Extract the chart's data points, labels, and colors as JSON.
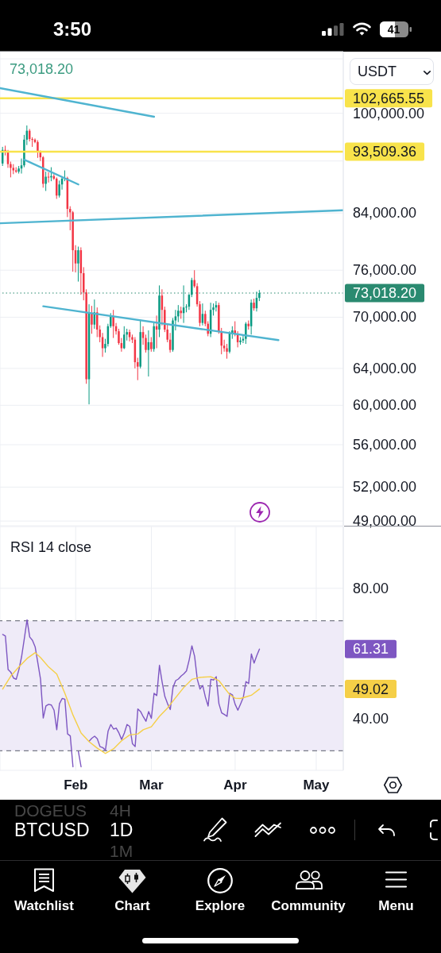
{
  "chart_data": [
    {
      "type": "candlestick",
      "x": [
        "--01-05",
        "--01-06",
        "--01-07",
        "--01-08",
        "--01-09",
        "--01-10",
        "--01-11",
        "--01-12",
        "--01-13",
        "--01-14",
        "--01-15",
        "--01-16",
        "--01-17",
        "--01-18",
        "--01-19",
        "--01-20",
        "--01-21",
        "--01-22",
        "--01-23",
        "--01-24",
        "--01-25",
        "--01-26",
        "--01-27",
        "--01-28",
        "--01-29",
        "--01-30",
        "--01-31",
        "--02-01",
        "--02-02",
        "--02-03",
        "--02-04",
        "--02-05",
        "--02-06",
        "--02-07",
        "--02-08",
        "--02-09",
        "--02-10",
        "--02-11",
        "--02-12",
        "--02-13",
        "--02-14",
        "--02-15",
        "--02-16",
        "--02-17",
        "--02-18",
        "--02-19",
        "--02-20",
        "--02-21",
        "--02-22",
        "--02-23",
        "--02-24",
        "--02-25",
        "--02-26",
        "--02-27",
        "--02-28",
        "--03-01",
        "--03-02",
        "--03-03",
        "--03-04",
        "--03-05",
        "--03-06",
        "--03-07",
        "--03-08",
        "--03-09",
        "--03-10",
        "--03-11",
        "--03-12",
        "--03-13",
        "--03-14",
        "--03-15",
        "--03-16",
        "--03-17",
        "--03-18",
        "--03-19",
        "--03-20",
        "--03-21",
        "--03-22",
        "--03-23",
        "--03-24",
        "--03-25",
        "--03-26",
        "--03-27",
        "--03-28",
        "--03-29",
        "--03-30",
        "--03-31",
        "--04-01",
        "--04-02",
        "--04-03",
        "--04-04",
        "--04-05",
        "--04-06",
        "--04-07",
        "--04-08",
        "--04-09",
        "--04-10"
      ],
      "ohlc": [
        [
          91600,
          94300,
          91200,
          93800
        ],
        [
          93800,
          94500,
          92900,
          93600
        ],
        [
          93600,
          93800,
          90900,
          91500
        ],
        [
          91500,
          91900,
          89400,
          90900
        ],
        [
          90900,
          91500,
          89900,
          90500
        ],
        [
          90500,
          91000,
          90100,
          90300
        ],
        [
          90300,
          91200,
          90000,
          90800
        ],
        [
          90800,
          92400,
          90000,
          91300
        ],
        [
          91300,
          96300,
          91000,
          95500
        ],
        [
          95500,
          97900,
          94600,
          97000
        ],
        [
          97000,
          97300,
          95200,
          95600
        ],
        [
          95600,
          95900,
          94300,
          95500
        ],
        [
          95500,
          95700,
          94900,
          95100
        ],
        [
          95100,
          95400,
          92500,
          93600
        ],
        [
          93600,
          93700,
          92000,
          92600
        ],
        [
          92600,
          92800,
          87800,
          88400
        ],
        [
          88400,
          90300,
          87300,
          89500
        ],
        [
          89500,
          90200,
          88600,
          89400
        ],
        [
          89400,
          91000,
          88800,
          89600
        ],
        [
          89600,
          89900,
          89000,
          89200
        ],
        [
          89200,
          89400,
          86100,
          86600
        ],
        [
          86600,
          88900,
          86300,
          88300
        ],
        [
          88300,
          89500,
          87500,
          89200
        ],
        [
          89200,
          90500,
          88800,
          89300
        ],
        [
          89300,
          89500,
          83400,
          84600
        ],
        [
          84600,
          85000,
          81500,
          84100
        ],
        [
          84100,
          84300,
          75800,
          78700
        ],
        [
          78700,
          79400,
          75700,
          76900
        ],
        [
          76900,
          79200,
          74500,
          78700
        ],
        [
          78700,
          79100,
          72800,
          75600
        ],
        [
          75600,
          76400,
          72100,
          73100
        ],
        [
          73100,
          73500,
          62300,
          62800
        ],
        [
          62800,
          71600,
          60100,
          70500
        ],
        [
          70500,
          71400,
          68000,
          69100
        ],
        [
          69100,
          72200,
          68600,
          70600
        ],
        [
          70600,
          71200,
          67600,
          68500
        ],
        [
          68500,
          69000,
          67000,
          67600
        ],
        [
          67600,
          68100,
          65300,
          66300
        ],
        [
          66300,
          67400,
          65800,
          66800
        ],
        [
          66800,
          69200,
          66500,
          68900
        ],
        [
          68900,
          70500,
          68700,
          70100
        ],
        [
          70100,
          70900,
          67500,
          68900
        ],
        [
          68900,
          69300,
          67900,
          68300
        ],
        [
          68300,
          68600,
          66700,
          66900
        ],
        [
          66900,
          67500,
          65900,
          66300
        ],
        [
          66300,
          68900,
          66200,
          67900
        ],
        [
          67900,
          68600,
          67200,
          68200
        ],
        [
          68200,
          68500,
          67100,
          67600
        ],
        [
          67600,
          67900,
          66900,
          67300
        ],
        [
          67300,
          67600,
          64000,
          64700
        ],
        [
          64700,
          65200,
          62700,
          64200
        ],
        [
          64200,
          69700,
          64000,
          68200
        ],
        [
          68200,
          68900,
          66700,
          67500
        ],
        [
          67500,
          67900,
          65800,
          66100
        ],
        [
          66100,
          68400,
          63100,
          67000
        ],
        [
          67000,
          67600,
          65900,
          66200
        ],
        [
          66200,
          69400,
          65900,
          68900
        ],
        [
          68900,
          70200,
          66300,
          68500
        ],
        [
          68500,
          74000,
          67600,
          72700
        ],
        [
          72700,
          73500,
          69000,
          70900
        ],
        [
          70900,
          71300,
          68200,
          68500
        ],
        [
          68500,
          69100,
          67000,
          67300
        ],
        [
          67300,
          68100,
          65800,
          66100
        ],
        [
          66100,
          69900,
          65900,
          69600
        ],
        [
          69600,
          70900,
          68400,
          70100
        ],
        [
          70100,
          71500,
          69400,
          70800
        ],
        [
          70800,
          71300,
          69800,
          70500
        ],
        [
          70500,
          74000,
          69300,
          71200
        ],
        [
          71200,
          71600,
          70600,
          71300
        ],
        [
          71300,
          72900,
          70900,
          72800
        ],
        [
          72800,
          75000,
          72500,
          74700
        ],
        [
          74700,
          76000,
          73700,
          73900
        ],
        [
          73900,
          74300,
          71300,
          71600
        ],
        [
          71600,
          72000,
          68900,
          69300
        ],
        [
          69300,
          71700,
          69000,
          70400
        ],
        [
          70400,
          70800,
          68900,
          69200
        ],
        [
          69200,
          69500,
          67700,
          68000
        ],
        [
          68000,
          71800,
          67600,
          70900
        ],
        [
          70900,
          71700,
          70200,
          71200
        ],
        [
          71200,
          72000,
          70700,
          71500
        ],
        [
          71500,
          71800,
          68000,
          68300
        ],
        [
          68300,
          68700,
          65600,
          66600
        ],
        [
          66600,
          67300,
          65900,
          66300
        ],
        [
          66300,
          66800,
          65100,
          65900
        ],
        [
          65900,
          68300,
          65700,
          68100
        ],
        [
          68100,
          68900,
          67400,
          68400
        ],
        [
          68400,
          69500,
          67700,
          68000
        ],
        [
          68000,
          68300,
          66400,
          67000
        ],
        [
          67000,
          67600,
          66700,
          67200
        ],
        [
          67200,
          67800,
          66900,
          67400
        ],
        [
          67400,
          69400,
          66800,
          69200
        ],
        [
          69200,
          69600,
          68500,
          68900
        ],
        [
          68900,
          72200,
          67900,
          71800
        ],
        [
          71800,
          72300,
          70800,
          71100
        ],
        [
          71100,
          73200,
          70700,
          72400
        ],
        [
          72400,
          73400,
          72000,
          73018.2
        ]
      ],
      "colors": [
        "#089981",
        "#f23645",
        "#f23645",
        "#f23645",
        "#f23645",
        "#f23645",
        "#089981",
        "#089981",
        "#089981",
        "#089981",
        "#f23645",
        "#f23645",
        "#f23645",
        "#f23645",
        "#f23645",
        "#f23645",
        "#089981",
        "#f23645",
        "#089981",
        "#f23645",
        "#f23645",
        "#089981",
        "#089981",
        "#089981",
        "#f23645",
        "#f23645",
        "#f23645",
        "#f23645",
        "#089981",
        "#f23645",
        "#f23645",
        "#f23645",
        "#089981",
        "#f23645",
        "#089981",
        "#f23645",
        "#f23645",
        "#f23645",
        "#089981",
        "#089981",
        "#089981",
        "#f23645",
        "#f23645",
        "#f23645",
        "#f23645",
        "#089981",
        "#089981",
        "#f23645",
        "#f23645",
        "#f23645",
        "#f23645",
        "#089981",
        "#f23645",
        "#f23645",
        "#089981",
        "#f23645",
        "#089981",
        "#f23645",
        "#089981",
        "#f23645",
        "#f23645",
        "#f23645",
        "#f23645",
        "#089981",
        "#089981",
        "#089981",
        "#f23645",
        "#089981",
        "#089981",
        "#089981",
        "#089981",
        "#f23645",
        "#f23645",
        "#f23645",
        "#089981",
        "#f23645",
        "#f23645",
        "#089981",
        "#089981",
        "#089981",
        "#f23645",
        "#f23645",
        "#f23645",
        "#f23645",
        "#089981",
        "#089981",
        "#f23645",
        "#f23645",
        "#089981",
        "#089981",
        "#089981",
        "#f23645",
        "#089981",
        "#f23645",
        "#089981",
        "#089981"
      ],
      "series": [
        {
          "type": "line",
          "color": "#4fb4d0",
          "x": [
            "--01-04",
            "--03-02"
          ],
          "values": [
            104500,
            99400
          ]
        },
        {
          "type": "line",
          "color": "#4fb4d0",
          "x": [
            "--01-13",
            "--02-02"
          ],
          "values": [
            92200,
            88300
          ]
        },
        {
          "type": "line",
          "color": "#4fb4d0",
          "x": [
            "--01-04",
            "--05-11"
          ],
          "values": [
            82500,
            84400
          ]
        },
        {
          "type": "line",
          "color": "#4fb4d0",
          "x": [
            "--01-20",
            "--04-17"
          ],
          "values": [
            71350,
            67250
          ]
        }
      ],
      "xlim": [
        "--01-04",
        "--05-11"
      ],
      "xticks": [
        {
          "value": "--02-01",
          "label": "Feb"
        },
        {
          "value": "--03-01",
          "label": "Mar"
        },
        {
          "value": "--04-01",
          "label": "Apr"
        },
        {
          "value": "--05-01",
          "label": "May"
        }
      ],
      "ylim": [
        48600,
        111400
      ],
      "yticks": [
        {
          "value": 49000,
          "label": "49,000.00"
        },
        {
          "value": 52000,
          "label": "52,000.00"
        },
        {
          "value": 56000,
          "label": "56,000.00"
        },
        {
          "value": 60000,
          "label": "60,000.00"
        },
        {
          "value": 64000,
          "label": "64,000.00"
        },
        {
          "value": 70000,
          "label": "70,000.00"
        },
        {
          "value": 76000,
          "label": "76,000.00"
        },
        {
          "value": 84000,
          "label": "84,000.00"
        },
        {
          "value": 92000,
          "label": null
        },
        {
          "value": 100000,
          "label": "100,000.00"
        },
        {
          "value": 110000,
          "label": null
        }
      ],
      "log": "y",
      "grid": true,
      "tick_labels": "y",
      "ref_lines": [
        {
          "axis": "y",
          "value": 102665.55,
          "label": "102,665.55",
          "color": "#f8e34b"
        },
        {
          "axis": "y",
          "value": 93509.36,
          "label": "93,509.36",
          "color": "#f8e34b"
        },
        {
          "axis": "y",
          "value": 73018.2,
          "label": "73,018.20",
          "color": "#2a8a70",
          "line_style": "dotted"
        }
      ],
      "annotations": [
        "73,018.20",
        "USDT",
        "3:50",
        "41",
        "DOGEUS",
        "4H",
        "BTCUSD",
        "1D",
        "1M",
        "Watchlist",
        "Chart",
        "Explore",
        "Community",
        "Menu"
      ]
    },
    {
      "type": "line",
      "title": "RSI 14 close",
      "x": [
        "--01-05",
        "--01-06",
        "--01-07",
        "--01-08",
        "--01-09",
        "--01-10",
        "--01-11",
        "--01-12",
        "--01-13",
        "--01-14",
        "--01-15",
        "--01-16",
        "--01-17",
        "--01-18",
        "--01-19",
        "--01-20",
        "--01-21",
        "--01-22",
        "--01-23",
        "--01-24",
        "--01-25",
        "--01-26",
        "--01-27",
        "--01-28",
        "--01-29",
        "--01-30",
        "--01-31",
        "--02-01",
        "--02-02",
        "--02-03",
        "--02-04",
        "--02-05",
        "--02-06",
        "--02-07",
        "--02-08",
        "--02-09",
        "--02-10",
        "--02-11",
        "--02-12",
        "--02-13",
        "--02-14",
        "--02-15",
        "--02-16",
        "--02-17",
        "--02-18",
        "--02-19",
        "--02-20",
        "--02-21",
        "--02-22",
        "--02-23",
        "--02-24",
        "--02-25",
        "--02-26",
        "--02-27",
        "--02-28",
        "--03-01",
        "--03-02",
        "--03-03",
        "--03-04",
        "--03-05",
        "--03-06",
        "--03-07",
        "--03-08",
        "--03-09",
        "--03-10",
        "--03-11",
        "--03-12",
        "--03-13",
        "--03-14",
        "--03-15",
        "--03-16",
        "--03-17",
        "--03-18",
        "--03-19",
        "--03-20",
        "--03-21",
        "--03-22",
        "--03-23",
        "--03-24",
        "--03-25",
        "--03-26",
        "--03-27",
        "--03-28",
        "--03-29",
        "--03-30",
        "--03-31",
        "--04-01",
        "--04-02",
        "--04-03",
        "--04-04",
        "--04-05",
        "--04-06",
        "--04-07",
        "--04-08",
        "--04-09",
        "--04-10"
      ],
      "series": [
        {
          "color": "#7e57c2",
          "values": [
            65.8,
            65.3,
            55,
            54.2,
            52.4,
            52,
            55,
            59,
            64.5,
            70.3,
            65,
            64,
            62,
            57.1,
            52,
            40.1,
            43.8,
            44.3,
            44.1,
            42.5,
            36.5,
            44.5,
            46.1,
            45.9,
            35.2,
            34.6,
            25.1,
            null,
            29.8,
            25.1,
            null,
            null,
            33,
            33.9,
            34.5,
            33.7,
            31.3,
            31,
            30.2,
            36.1,
            38.1,
            36.7,
            37,
            35.5,
            33.5,
            35.5,
            38.1,
            37.5,
            32.2,
            31.3,
            42.9,
            42.1,
            40.5,
            39.1,
            42.1,
            40,
            47.7,
            47,
            56.3,
            51.1,
            46.7,
            44.5,
            42.7,
            49.5,
            51.6,
            52.1,
            53,
            53.7,
            54.6,
            58,
            62.3,
            59.1,
            52,
            49,
            50.1,
            46.5,
            43.8,
            52,
            51.8,
            52.8,
            44.5,
            41.7,
            41.2,
            40.6,
            47.7,
            47.2,
            44.3,
            42.5,
            44.4,
            46.4,
            51.3,
            50.7,
            59.8,
            57,
            59.3,
            61.31
          ]
        },
        {
          "color": "#f5cf47",
          "x": [
            "--01-05",
            "--01-08",
            "--01-11",
            "--01-14",
            "--01-17",
            "--01-19",
            "--01-22",
            "--01-25",
            "--01-28",
            "--01-31",
            "--02-03",
            "--02-06",
            "--02-09",
            "--02-12",
            "--02-15",
            "--02-18",
            "--02-21",
            "--02-24",
            "--02-26",
            "--03-01",
            "--03-04",
            "--03-07",
            "--03-10",
            "--03-13",
            "--03-16",
            "--03-19",
            "--03-23",
            "--03-26",
            "--03-28",
            "--03-30",
            "--04-01",
            "--04-03",
            "--04-05",
            "--04-07",
            "--04-10"
          ],
          "values": [
            49,
            53,
            55.8,
            58.4,
            60.2,
            58.7,
            55.8,
            53.6,
            47.7,
            41,
            35.5,
            32.8,
            30.8,
            29.2,
            30.6,
            33.1,
            34.9,
            35.2,
            36.5,
            37.4,
            40.6,
            43.2,
            46.4,
            49.5,
            52,
            52.6,
            52.8,
            51.6,
            49.4,
            47.3,
            46.2,
            46.1,
            46.6,
            47.1,
            49.02
          ]
        }
      ],
      "xlim": [
        "--01-04",
        "--05-11"
      ],
      "xticks": [
        {
          "value": "--02-01",
          "label": "Feb"
        },
        {
          "value": "--03-01",
          "label": "Mar"
        },
        {
          "value": "--04-01",
          "label": "Apr"
        },
        {
          "value": "--05-01",
          "label": "May"
        }
      ],
      "ylim": [
        24,
        99
      ],
      "yticks": [
        {
          "value": 40,
          "label": "40.00"
        },
        {
          "value": 80,
          "label": "80.00"
        }
      ],
      "grid": true,
      "ref_lines": [
        {
          "axis": "y",
          "value": 70,
          "color": "#787b86",
          "line_style": "dashed"
        },
        {
          "axis": "y",
          "value": 50,
          "color": "#787b86",
          "line_style": "dashed"
        },
        {
          "axis": "y",
          "value": 30,
          "color": "#787b86",
          "line_style": "dashed"
        }
      ],
      "bands": [
        {
          "axis": "y",
          "from": 30,
          "to": 70,
          "color": "#efebf8"
        }
      ],
      "annotations": [
        "61.31",
        "49.02"
      ]
    }
  ]
}
